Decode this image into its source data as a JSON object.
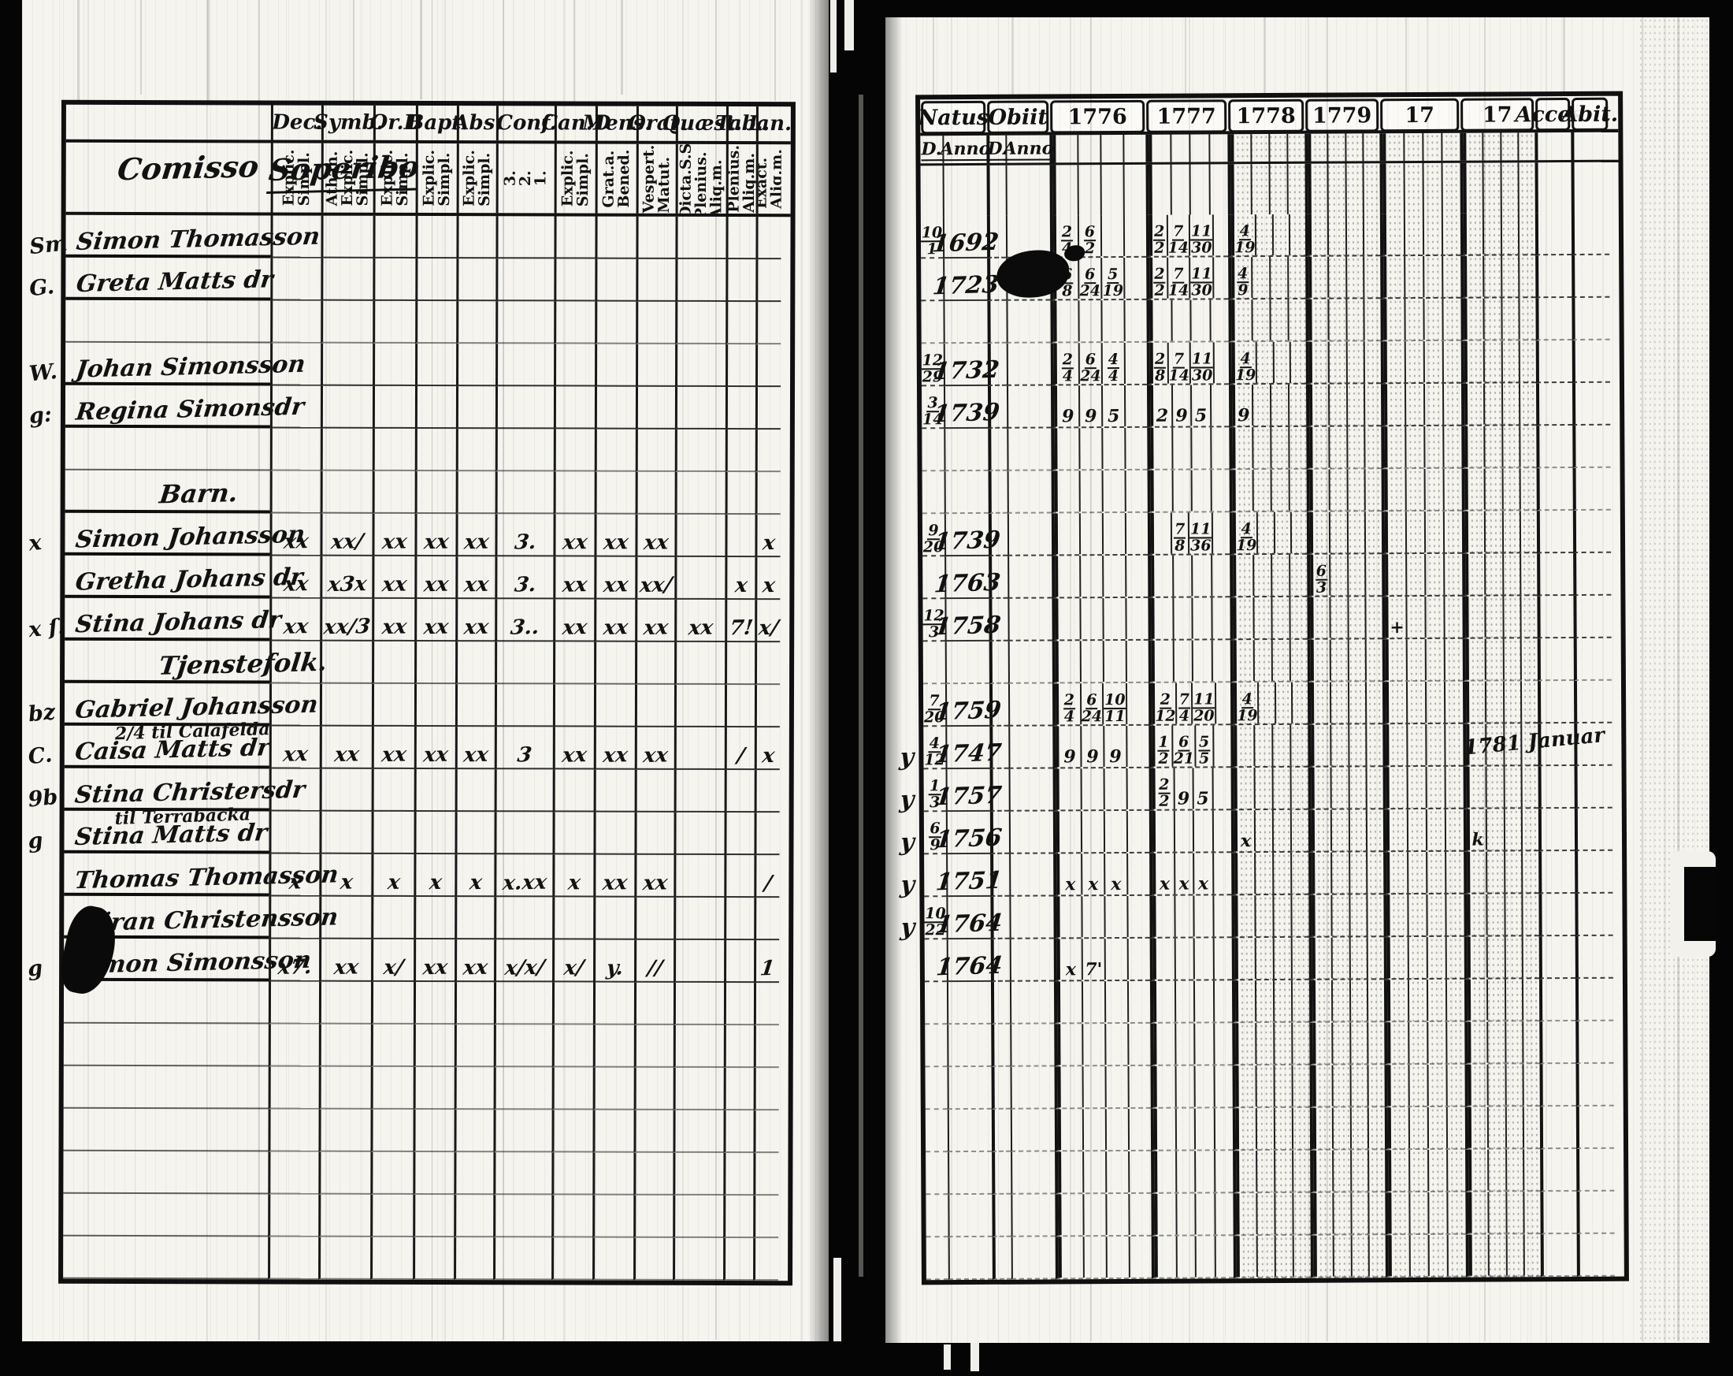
{
  "document": {
    "kind": "scanned parish communion book spread",
    "ink_color": "#121212",
    "paper_color": "#f5f4ef"
  },
  "left": {
    "intro_line1": "Comisso",
    "intro_line2": "Soperibo",
    "columns": [
      {
        "label": "Dec.",
        "sub": "Explic. Simpl."
      },
      {
        "label": "Symb.",
        "sub": "Athan. Explic. Simpl."
      },
      {
        "label": "Or.D",
        "sub": "Explic. Simpl."
      },
      {
        "label": "Bapt.",
        "sub": "Explic. Simpl."
      },
      {
        "label": "Abs.",
        "sub": "Explic. Simpl."
      },
      {
        "label": "Conf.",
        "sub": "3. 2. 1."
      },
      {
        "label": "Can.D",
        "sub": "Explic. Simpl."
      },
      {
        "label": "Mens.",
        "sub": "Grat.a. Bened."
      },
      {
        "label": "Orat.",
        "sub": "Vespert. Matut."
      },
      {
        "label": "Quæst.",
        "sub": "Dicta.S.S. Plenius. Aliq.m."
      },
      {
        "label": "Taba",
        "sub": "Plenius. Aliq.m."
      },
      {
        "label": "L.n.",
        "sub": "Exact. Aliq.m."
      }
    ],
    "rows": [
      {
        "kind": "person",
        "margin": "Sm",
        "name": "Simon Thomasson",
        "marks": [
          "",
          "",
          "",
          "",
          "",
          "",
          "",
          "",
          "",
          "",
          "",
          ""
        ]
      },
      {
        "kind": "person",
        "margin": "G.",
        "name": "Greta Matts dr",
        "marks": [
          "",
          "",
          "",
          "",
          "",
          "",
          "",
          "",
          "",
          "",
          "",
          ""
        ]
      },
      {
        "kind": "blank"
      },
      {
        "kind": "person",
        "margin": "W.",
        "name": "Johan Simonsson",
        "marks": [
          "",
          "",
          "",
          "",
          "",
          "",
          "",
          "",
          "",
          "",
          "",
          ""
        ]
      },
      {
        "kind": "person",
        "margin": "g:",
        "name": "Regina Simonsdr",
        "marks": [
          "",
          "",
          "",
          "",
          "",
          "",
          "",
          "",
          "",
          "",
          "",
          ""
        ]
      },
      {
        "kind": "blank"
      },
      {
        "kind": "section",
        "name": "Barn."
      },
      {
        "kind": "person",
        "margin": "x",
        "name": "Simon Johansson",
        "marks": [
          "xx",
          "xx/",
          "xx",
          "xx",
          "xx",
          "3.",
          "xx",
          "xx",
          "xx",
          "",
          "",
          "x"
        ]
      },
      {
        "kind": "person",
        "margin": "",
        "name": "Gretha Johans dr",
        "marks": [
          "xx",
          "x3x",
          "xx",
          "xx",
          "xx",
          "3.",
          "xx",
          "xx",
          "xx/",
          "",
          "x",
          "x"
        ]
      },
      {
        "kind": "person",
        "margin": "x ſ:",
        "name": "Stina Johans dr",
        "marks": [
          "xx",
          "xx/3",
          "xx",
          "xx",
          "xx",
          "3..",
          "xx",
          "xx",
          "xx",
          "xx",
          "7!",
          "x/"
        ]
      },
      {
        "kind": "section",
        "name": "Tjenstefolk."
      },
      {
        "kind": "person",
        "margin": "bz",
        "name": "Gabriel Johansson",
        "marks": [
          "",
          "",
          "",
          "",
          "",
          "",
          "",
          "",
          "",
          "",
          "",
          ""
        ]
      },
      {
        "kind": "person",
        "margin": "C.",
        "name": "Caisa Matts dr",
        "note": "2/4 til Calafelda",
        "marks": [
          "xx",
          "xx",
          "xx",
          "xx",
          "xx",
          "3",
          "xx",
          "xx",
          "xx",
          "",
          "/",
          "x"
        ]
      },
      {
        "kind": "person",
        "margin": "9b",
        "name": "Stina Christersdr",
        "marks": [
          "",
          "",
          "",
          "",
          "",
          "",
          "",
          "",
          "",
          "",
          "",
          ""
        ]
      },
      {
        "kind": "person",
        "margin": "g",
        "name": "Stina Matts dr",
        "note": "til Terrabacka",
        "marks": [
          "",
          "",
          "",
          "",
          "",
          "",
          "",
          "",
          "",
          "",
          "",
          ""
        ]
      },
      {
        "kind": "person",
        "margin": "",
        "name": "Thomas Thomasson",
        "marks": [
          "x",
          "x",
          "x",
          "x",
          "x",
          "x.xx",
          "x",
          "xx",
          "xx",
          "",
          "",
          "/"
        ]
      },
      {
        "kind": "person",
        "margin": "",
        "name": "Göran Christensson",
        "marks": [
          "",
          "",
          "",
          "",
          "",
          "",
          "",
          "",
          "",
          "",
          "",
          ""
        ]
      },
      {
        "kind": "person",
        "margin": "g",
        "name": "Simon Simonsson",
        "marks": [
          "x7.",
          "xx",
          "x/",
          "xx",
          "xx",
          "x/x/",
          "x/",
          "y.",
          "//",
          "",
          "",
          "1"
        ]
      }
    ],
    "empty_rows": 7
  },
  "right": {
    "headers": [
      "Natus",
      "Obiit",
      "1776",
      "1777",
      "1778",
      "1779",
      "17",
      "17",
      "Acces.",
      "Abit."
    ],
    "subheaders": [
      "D.",
      "Anno",
      "D.",
      "Anno"
    ],
    "rows": [
      {
        "natus_d": "10/1",
        "natus_anno": "1692",
        "y1776": [
          "2/4",
          "6/2"
        ],
        "y1777": [
          "2/2",
          "7/14",
          "11/30"
        ],
        "y1778": [
          "4/19"
        ]
      },
      {
        "natus_d": "",
        "natus_anno": "1723",
        "blot": true,
        "y1776": [
          "6/8",
          "6/24",
          "5/19"
        ],
        "y1777": [
          "2/2",
          "7/14",
          "11/30"
        ],
        "y1778": [
          "4/9"
        ]
      },
      {},
      {
        "natus_d": "12/29",
        "natus_anno": "1732",
        "y1776": [
          "2/4",
          "6/24",
          "4/4"
        ],
        "y1777": [
          "2/8",
          "7/14",
          "11/30"
        ],
        "y1778": [
          "4/19"
        ]
      },
      {
        "natus_d": "3/14",
        "natus_anno": "1739",
        "y1776": [
          "9",
          "9",
          "5"
        ],
        "y1777": [
          "2",
          "9",
          "5"
        ],
        "y1778": [
          "9"
        ]
      },
      {},
      {},
      {
        "natus_d": "9/20",
        "natus_anno": "1739",
        "y1777": [
          "",
          "7/8",
          "11/36"
        ],
        "y1778": [
          "4/19"
        ]
      },
      {
        "natus_d": "",
        "natus_anno": "1763",
        "y1779": [
          "6/3"
        ]
      },
      {
        "natus_d": "12/3",
        "natus_anno": "1758",
        "y17a": [
          "+"
        ]
      },
      {},
      {
        "natus_d": "7/20",
        "natus_anno": "1759",
        "y1776": [
          "2/4",
          "6/24",
          "10/11"
        ],
        "y1777": [
          "2/12",
          "7/4",
          "11/20"
        ],
        "y1778": [
          "4/19"
        ]
      },
      {
        "pre": "y",
        "natus_d": "4/12",
        "natus_anno": "1747",
        "y1776": [
          "9",
          "9",
          "9"
        ],
        "y1777": [
          "1/2",
          "6/21",
          "5/5"
        ],
        "abit": "1781 Januar"
      },
      {
        "pre": "y",
        "natus_d": "1/3",
        "natus_anno": "1757",
        "y1777": [
          "2/2",
          "9",
          "5"
        ]
      },
      {
        "pre": "y",
        "natus_d": "6/9",
        "natus_anno": "1756",
        "y1778": [
          "x"
        ],
        "y17b": [
          "k"
        ]
      },
      {
        "pre": "y",
        "natus_d": "",
        "natus_anno": "1751",
        "y1776": [
          "x",
          "x",
          "x"
        ],
        "y1777": [
          "x",
          "x",
          "x"
        ]
      },
      {
        "pre": "y",
        "natus_d": "10/22",
        "natus_anno": "1764"
      },
      {
        "natus_d": "",
        "natus_anno": "1764",
        "y1776": [
          "x",
          "7'"
        ]
      }
    ],
    "empty_rows": 7
  }
}
